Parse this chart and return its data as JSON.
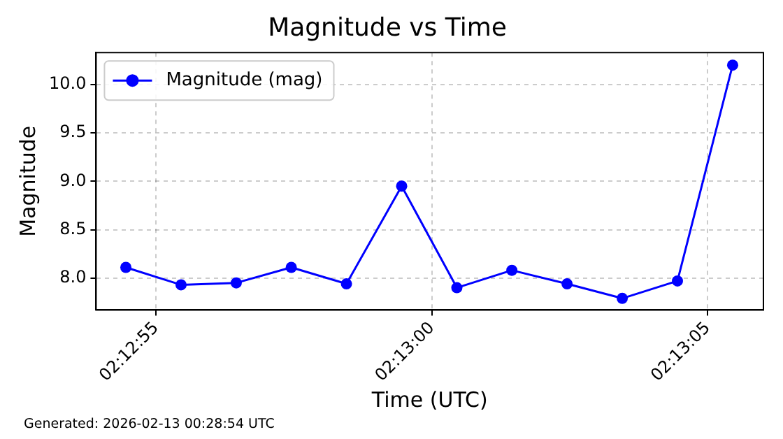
{
  "chart_data": {
    "type": "line",
    "title": "Magnitude vs Time",
    "xlabel": "Time (UTC)",
    "ylabel": "Magnitude",
    "x": [
      2.215125,
      2.215403,
      2.215681,
      2.215958,
      2.216236,
      2.216514,
      2.216792,
      2.217069,
      2.217347,
      2.217625,
      2.217903,
      2.218181
    ],
    "series": [
      {
        "name": "Magnitude (mag)",
        "color": "#0000ff",
        "values": [
          8.11,
          7.93,
          7.95,
          8.11,
          7.94,
          8.95,
          7.9,
          8.08,
          7.94,
          7.79,
          7.97,
          10.2
        ]
      }
    ],
    "xlim": [
      2.214975,
      2.218336
    ],
    "xticks": [
      {
        "value": 2.2152778,
        "label": "02:12:55"
      },
      {
        "value": 2.2166667,
        "label": "02:13:00"
      },
      {
        "value": 2.2180556,
        "label": "02:13:05"
      }
    ],
    "ylim": [
      7.67,
      10.33
    ],
    "yticks": [
      {
        "value": 8,
        "label": "8.0"
      },
      {
        "value": 8.5,
        "label": "8.5"
      },
      {
        "value": 9,
        "label": "9.0"
      },
      {
        "value": 9.5,
        "label": "9.5"
      },
      {
        "value": 10,
        "label": "10.0"
      }
    ],
    "grid": true,
    "legend": "top left",
    "marker": "circle",
    "line_style": "solid",
    "annotations": [
      "Generated: 2026-02-13 00:28:54 UTC"
    ]
  }
}
